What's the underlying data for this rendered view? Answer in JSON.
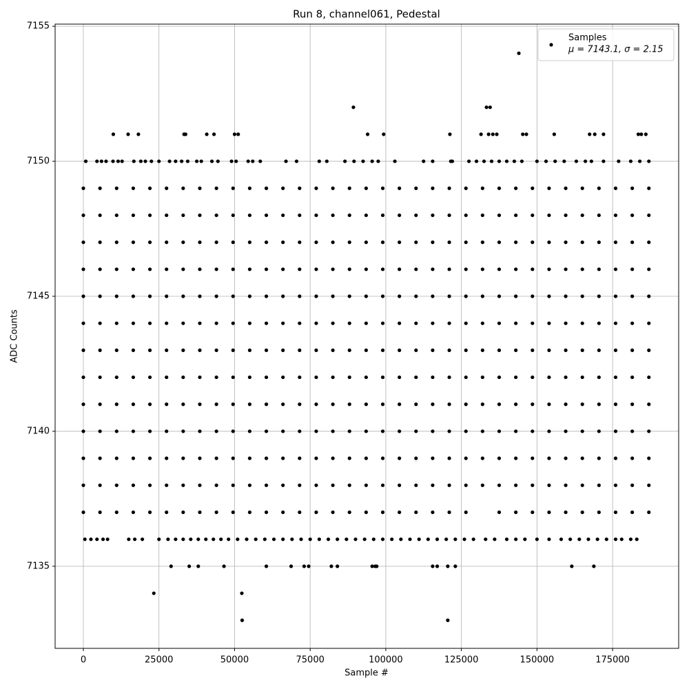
{
  "chart_data": {
    "type": "scatter",
    "title": "Run 8, channel061, Pedestal",
    "xlabel": "Sample #",
    "ylabel": "ADC Counts",
    "xlim": [
      -9340,
      196850
    ],
    "ylim": [
      7131.96,
      7155.08
    ],
    "xticks": [
      0,
      25000,
      50000,
      75000,
      100000,
      125000,
      150000,
      175000
    ],
    "yticks": [
      7135,
      7140,
      7145,
      7150,
      7155
    ],
    "grid": true,
    "legend_loc": "upper right",
    "legend_note": "μ = 7143.1, σ = 2.15",
    "series": [
      {
        "name": "Samples",
        "color": "#000000",
        "levels": [
          {
            "y": 7154,
            "x": [
              144000
            ]
          },
          {
            "y": 7152,
            "x": [
              89300,
              133300,
              134500
            ]
          },
          {
            "y": 7151,
            "x": [
              9900,
              14800,
              18200,
              33300,
              33800,
              40800,
              43200,
              50000,
              51200,
              94000,
              99300,
              121200,
              131500,
              134000,
              135400,
              136700,
              145300,
              146500,
              155700,
              167400,
              169100,
              172000,
              183500,
              184500,
              186000
            ]
          },
          {
            "y": 7150,
            "x": [
              800,
              4500,
              6000,
              7500,
              9800,
              11500,
              12800,
              16700,
              19000,
              20500,
              22500,
              25000,
              28500,
              30500,
              32500,
              34500,
              37500,
              39000,
              42500,
              44500,
              49000,
              50500,
              54500,
              56000,
              58500,
              67000,
              70500,
              78000,
              80500,
              86500,
              89500,
              92500,
              95500,
              97500,
              103000,
              112500,
              115500,
              121500,
              122000,
              127500,
              130000,
              132500,
              135000,
              137500,
              140000,
              142500,
              145000,
              150000,
              153000,
              156000,
              159000,
              163000,
              166000,
              168000,
              172000,
              177000,
              181000,
              184000,
              187000
            ]
          },
          {
            "y": 7149,
            "x": [
              0,
              5500,
              11000,
              16500,
              22000,
              27500,
              33000,
              38500,
              44000,
              49500,
              55000,
              60500,
              66000,
              71500,
              77000,
              82500,
              88000,
              93500,
              99000,
              104500,
              110000,
              115500,
              121000,
              126500,
              132000,
              137500,
              143000,
              148500,
              154000,
              159500,
              165000,
              170500,
              176000,
              181500,
              187000
            ]
          },
          {
            "y": 7148,
            "x": [
              0,
              5500,
              11000,
              16500,
              22000,
              27500,
              33000,
              38500,
              44000,
              49500,
              55000,
              60500,
              66000,
              71500,
              77000,
              82500,
              88000,
              93500,
              99000,
              104500,
              110000,
              115500,
              121000,
              126500,
              132000,
              137500,
              143000,
              148500,
              154000,
              159500,
              165000,
              170500,
              176000,
              181500,
              187000
            ]
          },
          {
            "y": 7147,
            "x": [
              0,
              5500,
              11000,
              16500,
              22000,
              27500,
              33000,
              38500,
              44000,
              49500,
              55000,
              60500,
              66000,
              71500,
              77000,
              82500,
              88000,
              93500,
              99000,
              104500,
              110000,
              115500,
              121000,
              126500,
              132000,
              137500,
              143000,
              148500,
              154000,
              159500,
              165000,
              170500,
              176000,
              181500,
              187000
            ]
          },
          {
            "y": 7146,
            "x": [
              0,
              5500,
              11000,
              16500,
              22000,
              27500,
              33000,
              38500,
              44000,
              49500,
              55000,
              60500,
              66000,
              71500,
              77000,
              82500,
              88000,
              93500,
              99000,
              104500,
              110000,
              115500,
              121000,
              126500,
              132000,
              137500,
              143000,
              148500,
              154000,
              159500,
              165000,
              170500,
              176000,
              181500,
              187000
            ]
          },
          {
            "y": 7145,
            "x": [
              0,
              5500,
              11000,
              16500,
              22000,
              27500,
              33000,
              38500,
              44000,
              49500,
              55000,
              60500,
              66000,
              71500,
              77000,
              82500,
              88000,
              93500,
              99000,
              104500,
              110000,
              115500,
              121000,
              126500,
              132000,
              137500,
              143000,
              148500,
              154000,
              159500,
              165000,
              170500,
              176000,
              181500,
              187000
            ]
          },
          {
            "y": 7144,
            "x": [
              0,
              5500,
              11000,
              16500,
              22000,
              27500,
              33000,
              38500,
              44000,
              49500,
              55000,
              60500,
              66000,
              71500,
              77000,
              82500,
              88000,
              93500,
              99000,
              104500,
              110000,
              115500,
              121000,
              126500,
              132000,
              137500,
              143000,
              148500,
              154000,
              159500,
              165000,
              170500,
              176000,
              181500,
              187000
            ]
          },
          {
            "y": 7143,
            "x": [
              0,
              5500,
              11000,
              16500,
              22000,
              27500,
              33000,
              38500,
              44000,
              49500,
              55000,
              60500,
              66000,
              71500,
              77000,
              82500,
              88000,
              93500,
              99000,
              104500,
              110000,
              115500,
              121000,
              126500,
              132000,
              137500,
              143000,
              148500,
              154000,
              159500,
              165000,
              170500,
              176000,
              181500,
              187000
            ]
          },
          {
            "y": 7142,
            "x": [
              0,
              5500,
              11000,
              16500,
              22000,
              27500,
              33000,
              38500,
              44000,
              49500,
              55000,
              60500,
              66000,
              71500,
              77000,
              82500,
              88000,
              93500,
              99000,
              104500,
              110000,
              115500,
              121000,
              126500,
              132000,
              137500,
              143000,
              148500,
              154000,
              159500,
              165000,
              170500,
              176000,
              181500,
              187000
            ]
          },
          {
            "y": 7141,
            "x": [
              0,
              5500,
              11000,
              16500,
              22000,
              27500,
              33000,
              38500,
              44000,
              49500,
              55000,
              60500,
              66000,
              71500,
              77000,
              82500,
              88000,
              93500,
              99000,
              104500,
              110000,
              115500,
              121000,
              126500,
              132000,
              137500,
              143000,
              148500,
              154000,
              159500,
              165000,
              170500,
              176000,
              181500,
              187000
            ]
          },
          {
            "y": 7140,
            "x": [
              0,
              5500,
              11000,
              16500,
              22000,
              27500,
              33000,
              38500,
              44000,
              49500,
              55000,
              60500,
              66000,
              71500,
              77000,
              82500,
              88000,
              93500,
              99000,
              104500,
              110000,
              115500,
              121000,
              126500,
              132000,
              137500,
              143000,
              148500,
              154000,
              159500,
              165000,
              170500,
              176000,
              181500,
              187000
            ]
          },
          {
            "y": 7139,
            "x": [
              0,
              5500,
              11000,
              16500,
              22000,
              27500,
              33000,
              38500,
              44000,
              49500,
              55000,
              60500,
              66000,
              71500,
              77000,
              82500,
              88000,
              93500,
              99000,
              104500,
              110000,
              115500,
              121000,
              126500,
              132000,
              137500,
              143000,
              148500,
              154000,
              159500,
              165000,
              170500,
              176000,
              181500,
              187000
            ]
          },
          {
            "y": 7138,
            "x": [
              0,
              5500,
              11000,
              16500,
              22000,
              27500,
              33000,
              38500,
              44000,
              49500,
              55000,
              60500,
              66000,
              71500,
              77000,
              82500,
              88000,
              93500,
              99000,
              104500,
              110000,
              115500,
              121000,
              126500,
              132000,
              137500,
              143000,
              148500,
              154000,
              159500,
              165000,
              170500,
              176000,
              181500,
              187000
            ]
          },
          {
            "y": 7137,
            "x": [
              0,
              5500,
              11000,
              16500,
              22000,
              27500,
              33000,
              38500,
              44000,
              49500,
              55000,
              60500,
              66000,
              71500,
              77000,
              82500,
              88000,
              93500,
              99000,
              104500,
              110000,
              115500,
              121000,
              126500,
              137500,
              143000,
              148500,
              154000,
              159500,
              165000,
              170500,
              176000,
              181500,
              187000
            ]
          },
          {
            "y": 7136,
            "x": [
              500,
              2500,
              4500,
              6500,
              8000,
              15000,
              17000,
              19500,
              25000,
              28000,
              30500,
              33000,
              35500,
              38000,
              40500,
              43000,
              45500,
              48000,
              51000,
              54000,
              57000,
              60000,
              63000,
              66000,
              69000,
              72000,
              75000,
              78000,
              81000,
              84000,
              87000,
              90000,
              93000,
              96000,
              99000,
              102000,
              105000,
              108000,
              111000,
              114000,
              117000,
              120000,
              123000,
              126000,
              129000,
              133000,
              136000,
              140000,
              143000,
              146000,
              150000,
              154000,
              158000,
              161000,
              164000,
              167000,
              170000,
              173000,
              176000,
              178000,
              181000,
              183000
            ]
          },
          {
            "y": 7135,
            "x": [
              29000,
              35000,
              38000,
              46500,
              60500,
              68700,
              73000,
              74500,
              82000,
              84000,
              95500,
              96500,
              97000,
              115500,
              117000,
              120500,
              123000,
              161500,
              168800
            ]
          },
          {
            "y": 7134,
            "x": [
              23300,
              52400
            ]
          },
          {
            "y": 7133,
            "x": [
              52500,
              120500
            ]
          }
        ]
      }
    ]
  }
}
